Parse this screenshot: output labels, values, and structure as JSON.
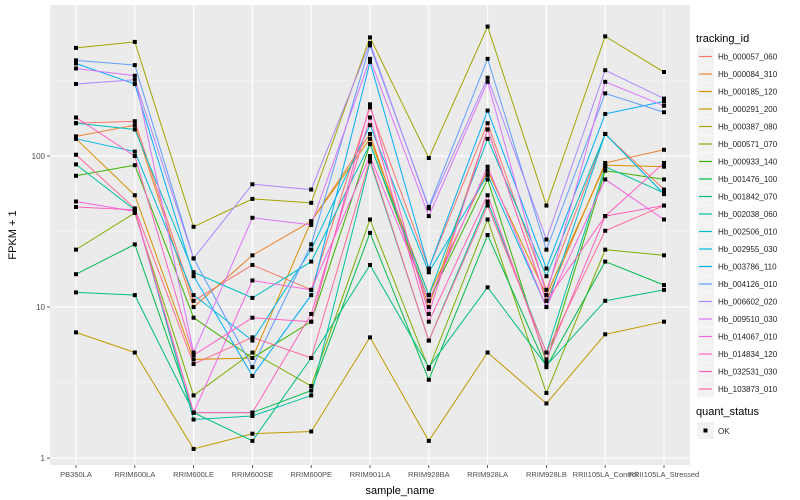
{
  "chart_data": {
    "type": "line",
    "title": "",
    "xlabel": "sample_name",
    "ylabel": "FPKM + 1",
    "yscale": "log10",
    "ylim": [
      0.9,
      1000
    ],
    "yticks": [
      "1",
      "10",
      "100"
    ],
    "ytick_values": [
      1,
      10,
      100
    ],
    "categories": [
      "PB350LA",
      "RRIM600LA",
      "RRIM600LE",
      "RRIM600SE",
      "RRIM600PE",
      "RRIM901LA",
      "RRIM928BA",
      "RRIM928LA",
      "RRIM928LB",
      "RRII105LA_Control",
      "RRII105LA_Stressed"
    ],
    "legend": {
      "title": "tracking_id",
      "placement": "right"
    },
    "legend2": {
      "title": "quant_status",
      "entries": [
        "OK"
      ]
    },
    "series": [
      {
        "name": "Hb_000057_060",
        "color": "#F8766D",
        "values": [
          165,
          170,
          11,
          19,
          13,
          210,
          18,
          165,
          13,
          140,
          60
        ]
      },
      {
        "name": "Hb_000084_310",
        "color": "#EA8331",
        "values": [
          135,
          160,
          10,
          22,
          37,
          140,
          10,
          150,
          11,
          90,
          110
        ]
      },
      {
        "name": "Hb_000185_120",
        "color": "#D89000",
        "values": [
          130,
          55,
          4.5,
          4.6,
          37,
          130,
          12,
          80,
          12,
          87,
          85
        ]
      },
      {
        "name": "Hb_000291_200",
        "color": "#C09B00",
        "values": [
          6.8,
          5,
          1.15,
          1.45,
          1.5,
          6.3,
          1.3,
          5,
          2.3,
          6.6,
          8
        ]
      },
      {
        "name": "Hb_000387_080",
        "color": "#A3A500",
        "values": [
          520,
          570,
          34,
          52,
          49,
          610,
          97,
          720,
          47,
          620,
          360
        ]
      },
      {
        "name": "Hb_000571_070",
        "color": "#7CAE00",
        "values": [
          24,
          42,
          2.6,
          5,
          3,
          38,
          3.9,
          38,
          2.7,
          24,
          22
        ]
      },
      {
        "name": "Hb_000933_140",
        "color": "#39B600",
        "values": [
          74,
          87,
          8.5,
          4.6,
          8,
          120,
          11,
          70,
          4.3,
          80,
          70
        ]
      },
      {
        "name": "Hb_001476_100",
        "color": "#00BB4E",
        "values": [
          16.5,
          26,
          2,
          2,
          2.8,
          31,
          3.3,
          30,
          4,
          20,
          14
        ]
      },
      {
        "name": "Hb_001842_070",
        "color": "#00BF7D",
        "values": [
          12.5,
          12,
          2,
          1.3,
          4.6,
          19,
          4,
          13.5,
          4.1,
          11,
          13
        ]
      },
      {
        "name": "Hb_002038_060",
        "color": "#00C1A3",
        "values": [
          88,
          44,
          1.8,
          1.9,
          2.6,
          92,
          6,
          50,
          5,
          85,
          57
        ]
      },
      {
        "name": "Hb_002506_010",
        "color": "#00BFC4",
        "values": [
          165,
          150,
          17,
          11.5,
          20,
          120,
          12,
          130,
          16,
          140,
          56
        ]
      },
      {
        "name": "Hb_002955_030",
        "color": "#00B9E3",
        "values": [
          130,
          107,
          12,
          6,
          24,
          160,
          17,
          75,
          10,
          140,
          56
        ]
      },
      {
        "name": "Hb_003786_110",
        "color": "#00ADFA",
        "values": [
          410,
          300,
          16,
          3.5,
          12,
          420,
          18,
          200,
          18,
          190,
          230
        ]
      },
      {
        "name": "Hb_004126_010",
        "color": "#619CFF",
        "values": [
          430,
          400,
          21,
          4,
          26,
          540,
          46,
          440,
          24,
          260,
          195
        ]
      },
      {
        "name": "Hb_006602_020",
        "color": "#AE87FF",
        "values": [
          300,
          320,
          21,
          65,
          60,
          560,
          45,
          330,
          28,
          370,
          240
        ]
      },
      {
        "name": "Hb_009510_030",
        "color": "#DB72FB",
        "values": [
          380,
          340,
          5,
          39,
          35,
          440,
          40,
          310,
          12,
          310,
          215
        ]
      },
      {
        "name": "Hb_014067_010",
        "color": "#F564E3",
        "values": [
          50,
          43,
          2,
          15,
          13,
          100,
          11,
          85,
          10,
          70,
          38
        ]
      },
      {
        "name": "Hb_014834_120",
        "color": "#FF61C3",
        "values": [
          180,
          100,
          4.8,
          8.5,
          8,
          220,
          9,
          150,
          11,
          40,
          90
        ]
      },
      {
        "name": "Hb_032531_030",
        "color": "#FF62BC",
        "values": [
          46,
          44,
          2,
          2,
          9,
          180,
          8,
          55,
          4.5,
          40,
          47
        ]
      },
      {
        "name": "Hb_103873_010",
        "color": "#FF6C91",
        "values": [
          102,
          45,
          4.2,
          6.3,
          4.6,
          95,
          6,
          47,
          5,
          32,
          47
        ]
      }
    ]
  }
}
